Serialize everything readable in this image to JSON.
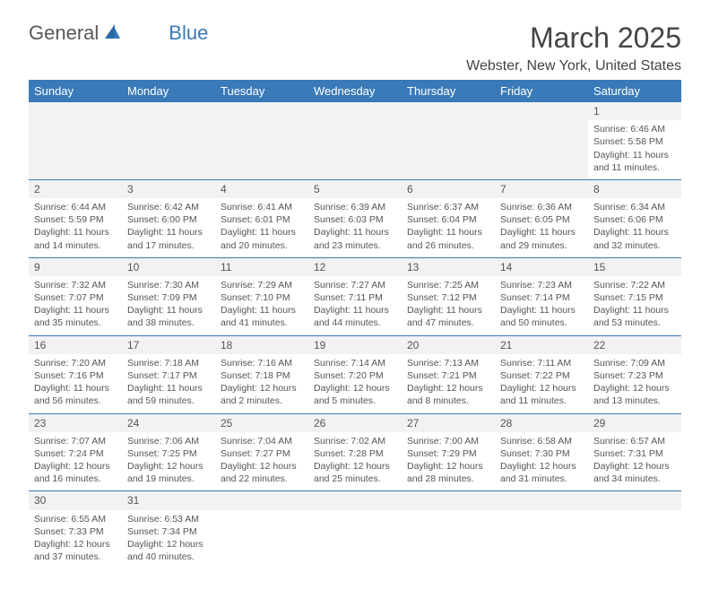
{
  "logo": {
    "part1": "General",
    "part2": "Blue"
  },
  "title": "March 2025",
  "location": "Webster, New York, United States",
  "colors": {
    "header_bg": "#3a7ab8",
    "header_text": "#ffffff",
    "daynum_bg": "#f2f2f2",
    "cell_text": "#555555",
    "rule": "#3a7ab8"
  },
  "typography": {
    "title_fontsize": 32,
    "location_fontsize": 16,
    "header_fontsize": 13,
    "cell_fontsize": 10.5
  },
  "day_headers": [
    "Sunday",
    "Monday",
    "Tuesday",
    "Wednesday",
    "Thursday",
    "Friday",
    "Saturday"
  ],
  "weeks": [
    {
      "days": [
        null,
        null,
        null,
        null,
        null,
        null,
        {
          "num": "1",
          "sunrise": "Sunrise: 6:46 AM",
          "sunset": "Sunset: 5:58 PM",
          "daylight": "Daylight: 11 hours and 11 minutes."
        }
      ]
    },
    {
      "days": [
        {
          "num": "2",
          "sunrise": "Sunrise: 6:44 AM",
          "sunset": "Sunset: 5:59 PM",
          "daylight": "Daylight: 11 hours and 14 minutes."
        },
        {
          "num": "3",
          "sunrise": "Sunrise: 6:42 AM",
          "sunset": "Sunset: 6:00 PM",
          "daylight": "Daylight: 11 hours and 17 minutes."
        },
        {
          "num": "4",
          "sunrise": "Sunrise: 6:41 AM",
          "sunset": "Sunset: 6:01 PM",
          "daylight": "Daylight: 11 hours and 20 minutes."
        },
        {
          "num": "5",
          "sunrise": "Sunrise: 6:39 AM",
          "sunset": "Sunset: 6:03 PM",
          "daylight": "Daylight: 11 hours and 23 minutes."
        },
        {
          "num": "6",
          "sunrise": "Sunrise: 6:37 AM",
          "sunset": "Sunset: 6:04 PM",
          "daylight": "Daylight: 11 hours and 26 minutes."
        },
        {
          "num": "7",
          "sunrise": "Sunrise: 6:36 AM",
          "sunset": "Sunset: 6:05 PM",
          "daylight": "Daylight: 11 hours and 29 minutes."
        },
        {
          "num": "8",
          "sunrise": "Sunrise: 6:34 AM",
          "sunset": "Sunset: 6:06 PM",
          "daylight": "Daylight: 11 hours and 32 minutes."
        }
      ]
    },
    {
      "days": [
        {
          "num": "9",
          "sunrise": "Sunrise: 7:32 AM",
          "sunset": "Sunset: 7:07 PM",
          "daylight": "Daylight: 11 hours and 35 minutes."
        },
        {
          "num": "10",
          "sunrise": "Sunrise: 7:30 AM",
          "sunset": "Sunset: 7:09 PM",
          "daylight": "Daylight: 11 hours and 38 minutes."
        },
        {
          "num": "11",
          "sunrise": "Sunrise: 7:29 AM",
          "sunset": "Sunset: 7:10 PM",
          "daylight": "Daylight: 11 hours and 41 minutes."
        },
        {
          "num": "12",
          "sunrise": "Sunrise: 7:27 AM",
          "sunset": "Sunset: 7:11 PM",
          "daylight": "Daylight: 11 hours and 44 minutes."
        },
        {
          "num": "13",
          "sunrise": "Sunrise: 7:25 AM",
          "sunset": "Sunset: 7:12 PM",
          "daylight": "Daylight: 11 hours and 47 minutes."
        },
        {
          "num": "14",
          "sunrise": "Sunrise: 7:23 AM",
          "sunset": "Sunset: 7:14 PM",
          "daylight": "Daylight: 11 hours and 50 minutes."
        },
        {
          "num": "15",
          "sunrise": "Sunrise: 7:22 AM",
          "sunset": "Sunset: 7:15 PM",
          "daylight": "Daylight: 11 hours and 53 minutes."
        }
      ]
    },
    {
      "days": [
        {
          "num": "16",
          "sunrise": "Sunrise: 7:20 AM",
          "sunset": "Sunset: 7:16 PM",
          "daylight": "Daylight: 11 hours and 56 minutes."
        },
        {
          "num": "17",
          "sunrise": "Sunrise: 7:18 AM",
          "sunset": "Sunset: 7:17 PM",
          "daylight": "Daylight: 11 hours and 59 minutes."
        },
        {
          "num": "18",
          "sunrise": "Sunrise: 7:16 AM",
          "sunset": "Sunset: 7:18 PM",
          "daylight": "Daylight: 12 hours and 2 minutes."
        },
        {
          "num": "19",
          "sunrise": "Sunrise: 7:14 AM",
          "sunset": "Sunset: 7:20 PM",
          "daylight": "Daylight: 12 hours and 5 minutes."
        },
        {
          "num": "20",
          "sunrise": "Sunrise: 7:13 AM",
          "sunset": "Sunset: 7:21 PM",
          "daylight": "Daylight: 12 hours and 8 minutes."
        },
        {
          "num": "21",
          "sunrise": "Sunrise: 7:11 AM",
          "sunset": "Sunset: 7:22 PM",
          "daylight": "Daylight: 12 hours and 11 minutes."
        },
        {
          "num": "22",
          "sunrise": "Sunrise: 7:09 AM",
          "sunset": "Sunset: 7:23 PM",
          "daylight": "Daylight: 12 hours and 13 minutes."
        }
      ]
    },
    {
      "days": [
        {
          "num": "23",
          "sunrise": "Sunrise: 7:07 AM",
          "sunset": "Sunset: 7:24 PM",
          "daylight": "Daylight: 12 hours and 16 minutes."
        },
        {
          "num": "24",
          "sunrise": "Sunrise: 7:06 AM",
          "sunset": "Sunset: 7:25 PM",
          "daylight": "Daylight: 12 hours and 19 minutes."
        },
        {
          "num": "25",
          "sunrise": "Sunrise: 7:04 AM",
          "sunset": "Sunset: 7:27 PM",
          "daylight": "Daylight: 12 hours and 22 minutes."
        },
        {
          "num": "26",
          "sunrise": "Sunrise: 7:02 AM",
          "sunset": "Sunset: 7:28 PM",
          "daylight": "Daylight: 12 hours and 25 minutes."
        },
        {
          "num": "27",
          "sunrise": "Sunrise: 7:00 AM",
          "sunset": "Sunset: 7:29 PM",
          "daylight": "Daylight: 12 hours and 28 minutes."
        },
        {
          "num": "28",
          "sunrise": "Sunrise: 6:58 AM",
          "sunset": "Sunset: 7:30 PM",
          "daylight": "Daylight: 12 hours and 31 minutes."
        },
        {
          "num": "29",
          "sunrise": "Sunrise: 6:57 AM",
          "sunset": "Sunset: 7:31 PM",
          "daylight": "Daylight: 12 hours and 34 minutes."
        }
      ]
    },
    {
      "days": [
        {
          "num": "30",
          "sunrise": "Sunrise: 6:55 AM",
          "sunset": "Sunset: 7:33 PM",
          "daylight": "Daylight: 12 hours and 37 minutes."
        },
        {
          "num": "31",
          "sunrise": "Sunrise: 6:53 AM",
          "sunset": "Sunset: 7:34 PM",
          "daylight": "Daylight: 12 hours and 40 minutes."
        },
        null,
        null,
        null,
        null,
        null
      ]
    }
  ]
}
